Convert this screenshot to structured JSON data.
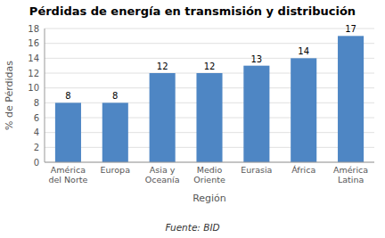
{
  "chart_data": {
    "type": "bar",
    "title": "Pérdidas de energía en transmisión y distribución",
    "xlabel": "Región",
    "ylabel": "% de Pérdidas",
    "categories": [
      "América\ndel Norte",
      "Europa",
      "Asia y\nOceanía",
      "Medio\nOriente",
      "Eurasia",
      "África",
      "América\nLatina"
    ],
    "values": [
      8,
      8,
      12,
      12,
      13,
      14,
      17
    ],
    "color": "#4e86c4",
    "ylim": [
      0,
      18
    ],
    "yticks": [
      0,
      2,
      4,
      6,
      8,
      10,
      12,
      14,
      16,
      18
    ],
    "grid": true,
    "data_labels": true,
    "annotations": [
      "Fuente: BID"
    ]
  }
}
